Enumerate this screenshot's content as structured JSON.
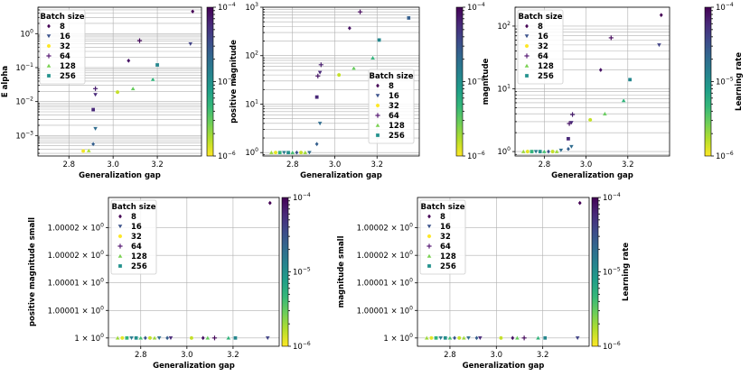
{
  "chart_data": [
    {
      "type": "scatter",
      "id": "p1",
      "title": "",
      "xlabel": "Generalization gap",
      "ylabel": "E alpha",
      "xscale": "linear",
      "yscale": "log",
      "xlim": [
        2.66,
        3.4
      ],
      "ylim": [
        0.00025,
        6
      ],
      "xticks": [
        2.8,
        3.0,
        3.2
      ],
      "xtick_labels": [
        "2.8",
        "3.0",
        "3.2"
      ],
      "yticks": [
        0.001,
        0.01,
        0.1,
        1
      ],
      "ytick_labels": [
        "10^-3",
        "10^-2",
        "10^-1",
        "10^0"
      ],
      "grid": true,
      "legend": {
        "title": "Batch size",
        "position": "top-left",
        "entries": [
          "8",
          "16",
          "32",
          "64",
          "128",
          "256"
        ]
      },
      "colorbar": {
        "label": "",
        "min": 1e-06,
        "max": 0.0001,
        "tick_labels": [
          "10^-4",
          "10^-5",
          "10^-6"
        ]
      },
      "points": [
        {
          "x": 3.36,
          "y": 4.5,
          "batch": "8",
          "lr": 0.0001
        },
        {
          "x": 3.35,
          "y": 0.5,
          "batch": "16",
          "lr": 4e-05
        },
        {
          "x": 3.07,
          "y": 0.16,
          "batch": "8",
          "lr": 8e-05
        },
        {
          "x": 3.12,
          "y": 0.62,
          "batch": "64",
          "lr": 9e-05
        },
        {
          "x": 3.2,
          "y": 0.12,
          "batch": "256",
          "lr": 1.2e-05
        },
        {
          "x": 3.18,
          "y": 0.045,
          "batch": "128",
          "lr": 5e-06
        },
        {
          "x": 3.09,
          "y": 0.024,
          "batch": "128",
          "lr": 3e-06
        },
        {
          "x": 3.02,
          "y": 0.019,
          "batch": "32",
          "lr": 1.5e-06
        },
        {
          "x": 2.92,
          "y": 0.024,
          "batch": "64",
          "lr": 7e-05
        },
        {
          "x": 2.92,
          "y": 0.016,
          "batch": "16",
          "lr": 6e-05
        },
        {
          "x": 2.91,
          "y": 0.0058,
          "batch": "256",
          "lr": 6e-05
        },
        {
          "x": 2.92,
          "y": 0.0016,
          "batch": "16",
          "lr": 2e-05
        },
        {
          "x": 2.91,
          "y": 0.00056,
          "batch": "8",
          "lr": 2.5e-05
        },
        {
          "x": 2.89,
          "y": 0.00036,
          "batch": "128",
          "lr": 1.8e-06
        },
        {
          "x": 2.865,
          "y": 0.00035,
          "batch": "32",
          "lr": 1.1e-06
        }
      ]
    },
    {
      "type": "scatter",
      "id": "p2",
      "title": "",
      "xlabel": "Generalization gap",
      "ylabel": "positive magnitude",
      "xscale": "linear",
      "yscale": "log",
      "xlim": [
        2.66,
        3.4
      ],
      "ylim": [
        0.85,
        1000
      ],
      "xticks": [
        2.8,
        3.0,
        3.2
      ],
      "xtick_labels": [
        "2.8",
        "3.0",
        "3.2"
      ],
      "yticks": [
        1,
        10,
        100,
        1000
      ],
      "ytick_labels": [
        "10^0",
        "10^1",
        "10^2",
        "10^3"
      ],
      "grid": true,
      "legend": {
        "title": "Batch size",
        "position": "center-right",
        "entries": [
          "8",
          "16",
          "32",
          "64",
          "128",
          "256"
        ]
      },
      "colorbar": {
        "label": "",
        "min": 1e-06,
        "max": 0.0001,
        "tick_labels": [
          "10^-4",
          "10^-5",
          "10^-6"
        ]
      },
      "points": [
        {
          "x": 3.35,
          "y": 600,
          "batch": "256",
          "lr": 2.5e-05
        },
        {
          "x": 3.12,
          "y": 800,
          "batch": "64",
          "lr": 9e-05
        },
        {
          "x": 3.07,
          "y": 370,
          "batch": "8",
          "lr": 8e-05
        },
        {
          "x": 3.21,
          "y": 210,
          "batch": "256",
          "lr": 1.2e-05
        },
        {
          "x": 3.18,
          "y": 90,
          "batch": "128",
          "lr": 5e-06
        },
        {
          "x": 3.09,
          "y": 55,
          "batch": "128",
          "lr": 3e-06
        },
        {
          "x": 3.02,
          "y": 40,
          "batch": "32",
          "lr": 1.5e-06
        },
        {
          "x": 2.935,
          "y": 65,
          "batch": "64",
          "lr": 7e-05
        },
        {
          "x": 2.93,
          "y": 45,
          "batch": "16",
          "lr": 6e-05
        },
        {
          "x": 2.92,
          "y": 38,
          "batch": "64",
          "lr": 8e-05
        },
        {
          "x": 2.915,
          "y": 14,
          "batch": "256",
          "lr": 6e-05
        },
        {
          "x": 2.93,
          "y": 4,
          "batch": "16",
          "lr": 2e-05
        },
        {
          "x": 2.915,
          "y": 1.5,
          "batch": "8",
          "lr": 2.5e-05
        },
        {
          "x": 2.7,
          "y": 1,
          "batch": "128",
          "lr": 2e-06
        },
        {
          "x": 2.72,
          "y": 1,
          "batch": "32",
          "lr": 1.2e-06
        },
        {
          "x": 2.74,
          "y": 1,
          "batch": "256",
          "lr": 5e-06
        },
        {
          "x": 2.76,
          "y": 1,
          "batch": "16",
          "lr": 1.5e-05
        },
        {
          "x": 2.78,
          "y": 1,
          "batch": "256",
          "lr": 1e-05
        },
        {
          "x": 2.8,
          "y": 1,
          "batch": "128",
          "lr": 4e-06
        },
        {
          "x": 2.82,
          "y": 1,
          "batch": "8",
          "lr": 3e-05
        },
        {
          "x": 2.84,
          "y": 1,
          "batch": "32",
          "lr": 1.5e-06
        },
        {
          "x": 2.86,
          "y": 1,
          "batch": "128",
          "lr": 2e-06
        },
        {
          "x": 2.88,
          "y": 1,
          "batch": "16",
          "lr": 2e-05
        }
      ]
    },
    {
      "type": "scatter",
      "id": "p3",
      "title": "",
      "xlabel": "Generalization gap",
      "ylabel": "magnitude",
      "xscale": "linear",
      "yscale": "log",
      "xlim": [
        2.66,
        3.4
      ],
      "ylim": [
        0.85,
        200
      ],
      "xticks": [
        2.8,
        3.0,
        3.2
      ],
      "xtick_labels": [
        "2.8",
        "3.0",
        "3.2"
      ],
      "yticks": [
        1,
        10,
        100
      ],
      "ytick_labels": [
        "10^0",
        "10^1",
        "10^2"
      ],
      "grid": true,
      "legend": {
        "title": "Batch size",
        "position": "top-left",
        "entries": [
          "8",
          "16",
          "32",
          "64",
          "128",
          "256"
        ]
      },
      "colorbar": {
        "label": "Learning rate",
        "min": 1e-06,
        "max": 0.0001,
        "tick_labels": [
          "10^-4",
          "10^-5",
          "10^-6"
        ]
      },
      "points": [
        {
          "x": 3.36,
          "y": 150,
          "batch": "8",
          "lr": 0.0001
        },
        {
          "x": 3.35,
          "y": 50,
          "batch": "16",
          "lr": 4e-05
        },
        {
          "x": 3.12,
          "y": 65,
          "batch": "64",
          "lr": 9e-05
        },
        {
          "x": 3.07,
          "y": 20,
          "batch": "8",
          "lr": 8e-05
        },
        {
          "x": 3.21,
          "y": 14,
          "batch": "256",
          "lr": 1.2e-05
        },
        {
          "x": 3.18,
          "y": 6.5,
          "batch": "128",
          "lr": 5e-06
        },
        {
          "x": 3.09,
          "y": 4,
          "batch": "128",
          "lr": 3e-06
        },
        {
          "x": 3.02,
          "y": 3.2,
          "batch": "32",
          "lr": 1.5e-06
        },
        {
          "x": 2.935,
          "y": 3.9,
          "batch": "64",
          "lr": 7e-05
        },
        {
          "x": 2.93,
          "y": 2.9,
          "batch": "16",
          "lr": 6e-05
        },
        {
          "x": 2.92,
          "y": 2.8,
          "batch": "64",
          "lr": 8e-05
        },
        {
          "x": 2.915,
          "y": 1.6,
          "batch": "256",
          "lr": 6e-05
        },
        {
          "x": 2.93,
          "y": 1.2,
          "batch": "16",
          "lr": 2e-05
        },
        {
          "x": 2.915,
          "y": 1.1,
          "batch": "8",
          "lr": 2.5e-05
        },
        {
          "x": 2.7,
          "y": 1,
          "batch": "128",
          "lr": 2e-06
        },
        {
          "x": 2.72,
          "y": 1,
          "batch": "32",
          "lr": 1.2e-06
        },
        {
          "x": 2.74,
          "y": 1,
          "batch": "256",
          "lr": 5e-06
        },
        {
          "x": 2.76,
          "y": 1,
          "batch": "16",
          "lr": 1.5e-05
        },
        {
          "x": 2.78,
          "y": 1,
          "batch": "256",
          "lr": 1e-05
        },
        {
          "x": 2.8,
          "y": 1,
          "batch": "128",
          "lr": 4e-06
        },
        {
          "x": 2.82,
          "y": 1,
          "batch": "8",
          "lr": 3e-05
        },
        {
          "x": 2.84,
          "y": 1,
          "batch": "32",
          "lr": 1.5e-06
        },
        {
          "x": 2.86,
          "y": 1,
          "batch": "128",
          "lr": 2e-06
        },
        {
          "x": 2.88,
          "y": 1.05,
          "batch": "16",
          "lr": 2e-05
        }
      ]
    },
    {
      "type": "scatter",
      "id": "p4",
      "title": "",
      "xlabel": "Generalization gap",
      "ylabel": "positive magnitude small",
      "xscale": "linear",
      "yscale": "linear",
      "xlim": [
        2.66,
        3.4
      ],
      "ylim": [
        0.9999985,
        1.0000255
      ],
      "xticks": [
        2.8,
        3.0,
        3.2
      ],
      "xtick_labels": [
        "2.8",
        "3.0",
        "3.2"
      ],
      "yticks": [
        1.0,
        1.000005,
        1.00001,
        1.000015,
        1.00002
      ],
      "ytick_labels": [
        "1 × 10^0",
        "1.00001 × 10^0",
        "1.00001 × 10^0",
        "1.00002 × 10^0",
        "1.00002 × 10^0"
      ],
      "grid": true,
      "legend": {
        "title": "Batch size",
        "position": "top-left",
        "entries": [
          "8",
          "16",
          "32",
          "64",
          "128",
          "256"
        ]
      },
      "colorbar": {
        "label": "",
        "min": 1e-06,
        "max": 0.0001,
        "tick_labels": [
          "10^-4",
          "10^-5",
          "10^-6"
        ]
      },
      "points": [
        {
          "x": 3.36,
          "y": 1.0000245,
          "batch": "8",
          "lr": 0.0001
        },
        {
          "x": 2.7,
          "y": 1.0,
          "batch": "128",
          "lr": 2e-06
        },
        {
          "x": 2.72,
          "y": 1.0,
          "batch": "32",
          "lr": 1.2e-06
        },
        {
          "x": 2.74,
          "y": 1.0,
          "batch": "256",
          "lr": 5e-06
        },
        {
          "x": 2.76,
          "y": 1.0,
          "batch": "16",
          "lr": 1.5e-05
        },
        {
          "x": 2.78,
          "y": 1.0,
          "batch": "256",
          "lr": 1e-05
        },
        {
          "x": 2.8,
          "y": 1.0,
          "batch": "128",
          "lr": 4e-06
        },
        {
          "x": 2.82,
          "y": 1.0,
          "batch": "8",
          "lr": 3e-05
        },
        {
          "x": 2.84,
          "y": 1.0,
          "batch": "32",
          "lr": 1.5e-06
        },
        {
          "x": 2.86,
          "y": 1.0,
          "batch": "128",
          "lr": 2e-06
        },
        {
          "x": 2.88,
          "y": 1.0,
          "batch": "16",
          "lr": 2e-05
        },
        {
          "x": 2.915,
          "y": 1.0,
          "batch": "8",
          "lr": 2.5e-05
        },
        {
          "x": 2.93,
          "y": 1.0,
          "batch": "16",
          "lr": 6e-05
        },
        {
          "x": 3.02,
          "y": 1.0,
          "batch": "32",
          "lr": 1.5e-06
        },
        {
          "x": 3.07,
          "y": 1.0,
          "batch": "8",
          "lr": 8e-05
        },
        {
          "x": 3.09,
          "y": 1.0,
          "batch": "128",
          "lr": 3e-06
        },
        {
          "x": 3.12,
          "y": 1.0,
          "batch": "64",
          "lr": 9e-05
        },
        {
          "x": 3.18,
          "y": 1.0,
          "batch": "128",
          "lr": 5e-06
        },
        {
          "x": 3.21,
          "y": 1.0,
          "batch": "256",
          "lr": 1.2e-05
        },
        {
          "x": 3.35,
          "y": 1.0,
          "batch": "16",
          "lr": 4e-05
        }
      ]
    },
    {
      "type": "scatter",
      "id": "p5",
      "title": "",
      "xlabel": "Generalization gap",
      "ylabel": "magnitude small",
      "xscale": "linear",
      "yscale": "linear",
      "xlim": [
        2.66,
        3.4
      ],
      "ylim": [
        0.9999985,
        1.0000255
      ],
      "xticks": [
        2.8,
        3.0,
        3.2
      ],
      "xtick_labels": [
        "2.8",
        "3.0",
        "3.2"
      ],
      "yticks": [
        1.0,
        1.000005,
        1.00001,
        1.000015,
        1.00002
      ],
      "ytick_labels": [
        "1 × 10^0",
        "1.00001 × 10^0",
        "1.00001 × 10^0",
        "1.00002 × 10^0",
        "1.00002 × 10^0"
      ],
      "grid": true,
      "legend": {
        "title": "Batch size",
        "position": "top-left",
        "entries": [
          "8",
          "16",
          "32",
          "64",
          "128",
          "256"
        ]
      },
      "colorbar": {
        "label": "Learning rate",
        "min": 1e-06,
        "max": 0.0001,
        "tick_labels": [
          "10^-4",
          "10^-5",
          "10^-6"
        ]
      },
      "points": [
        {
          "x": 3.36,
          "y": 1.0000245,
          "batch": "8",
          "lr": 0.0001
        },
        {
          "x": 2.7,
          "y": 1.0,
          "batch": "128",
          "lr": 2e-06
        },
        {
          "x": 2.72,
          "y": 1.0,
          "batch": "32",
          "lr": 1.2e-06
        },
        {
          "x": 2.74,
          "y": 1.0,
          "batch": "256",
          "lr": 5e-06
        },
        {
          "x": 2.76,
          "y": 1.0,
          "batch": "16",
          "lr": 1.5e-05
        },
        {
          "x": 2.78,
          "y": 1.0,
          "batch": "256",
          "lr": 1e-05
        },
        {
          "x": 2.8,
          "y": 1.0,
          "batch": "128",
          "lr": 4e-06
        },
        {
          "x": 2.82,
          "y": 1.0,
          "batch": "8",
          "lr": 3e-05
        },
        {
          "x": 2.84,
          "y": 1.0,
          "batch": "32",
          "lr": 1.5e-06
        },
        {
          "x": 2.86,
          "y": 1.0,
          "batch": "128",
          "lr": 2e-06
        },
        {
          "x": 2.88,
          "y": 1.0,
          "batch": "16",
          "lr": 2e-05
        },
        {
          "x": 2.915,
          "y": 1.0,
          "batch": "8",
          "lr": 2.5e-05
        },
        {
          "x": 2.93,
          "y": 1.0,
          "batch": "16",
          "lr": 6e-05
        },
        {
          "x": 3.02,
          "y": 1.0,
          "batch": "32",
          "lr": 1.5e-06
        },
        {
          "x": 3.07,
          "y": 1.0,
          "batch": "8",
          "lr": 8e-05
        },
        {
          "x": 3.09,
          "y": 1.0,
          "batch": "128",
          "lr": 3e-06
        },
        {
          "x": 3.12,
          "y": 1.0,
          "batch": "64",
          "lr": 9e-05
        },
        {
          "x": 3.18,
          "y": 1.0,
          "batch": "128",
          "lr": 5e-06
        },
        {
          "x": 3.21,
          "y": 1.0,
          "batch": "256",
          "lr": 1.2e-05
        },
        {
          "x": 3.35,
          "y": 1.0,
          "batch": "16",
          "lr": 4e-05
        }
      ]
    }
  ],
  "legend_markers": {
    "8": "diamond",
    "16": "triangle-down",
    "32": "circle",
    "64": "plus",
    "128": "triangle-up",
    "256": "square"
  },
  "legend_colors": {
    "8": "#440154",
    "16": "#3b528b",
    "32": "#fde725",
    "64": "#5b1f77",
    "128": "#7ad151",
    "256": "#21918c"
  },
  "colormap_stops": [
    "#fde725",
    "#b5de2b",
    "#6ece58",
    "#35b779",
    "#1f9e89",
    "#26828e",
    "#31688e",
    "#3e4989",
    "#482878",
    "#440154"
  ]
}
